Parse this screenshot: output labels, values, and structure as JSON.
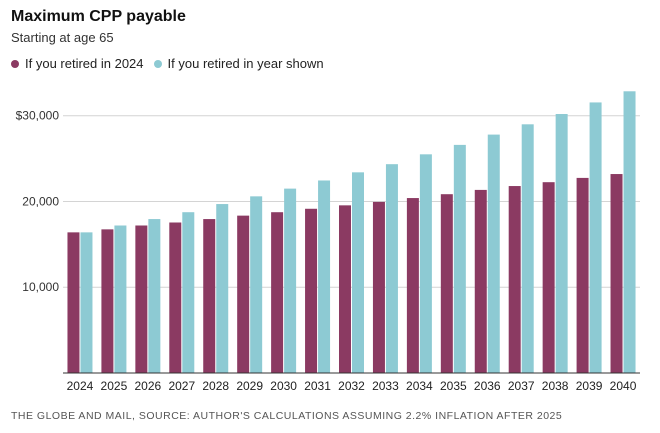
{
  "header": {
    "title": "Maximum CPP payable",
    "subtitle": "Starting at age 65"
  },
  "legend": [
    {
      "label": "If you retired in 2024",
      "color": "#8B3A62"
    },
    {
      "label": "If you retired in year shown",
      "color": "#8DCAD3"
    }
  ],
  "footer": {
    "source": "THE GLOBE AND MAIL, SOURCE: AUTHOR'S CALCULATIONS ASSUMING 2.2% INFLATION AFTER 2025"
  },
  "chart_data": {
    "type": "bar",
    "title": "Maximum CPP payable",
    "subtitle": "Starting at age 65",
    "categories": [
      "2024",
      "2025",
      "2026",
      "2027",
      "2028",
      "2029",
      "2030",
      "2031",
      "2032",
      "2033",
      "2034",
      "2035",
      "2036",
      "2037",
      "2038",
      "2039",
      "2040"
    ],
    "series": [
      {
        "name": "If you retired in 2024",
        "color": "#8B3A62",
        "values": [
          16400,
          16750,
          17200,
          17550,
          17950,
          18350,
          18750,
          19150,
          19550,
          19950,
          20400,
          20850,
          21350,
          21800,
          22250,
          22750,
          23200
        ]
      },
      {
        "name": "If you retired in year shown",
        "color": "#8DCAD3",
        "values": [
          16400,
          17200,
          17950,
          18750,
          19700,
          20600,
          21500,
          22450,
          23400,
          24350,
          25500,
          26600,
          27800,
          29000,
          30200,
          31550,
          32850
        ]
      }
    ],
    "yticks": [
      {
        "value": 10000,
        "label": "10,000"
      },
      {
        "value": 20000,
        "label": "20,000"
      },
      {
        "value": 30000,
        "label": "$30,000"
      }
    ],
    "ylim": [
      0,
      33000
    ],
    "xlabel": "",
    "ylabel": "",
    "grid": true,
    "legend_position": "top-left"
  }
}
